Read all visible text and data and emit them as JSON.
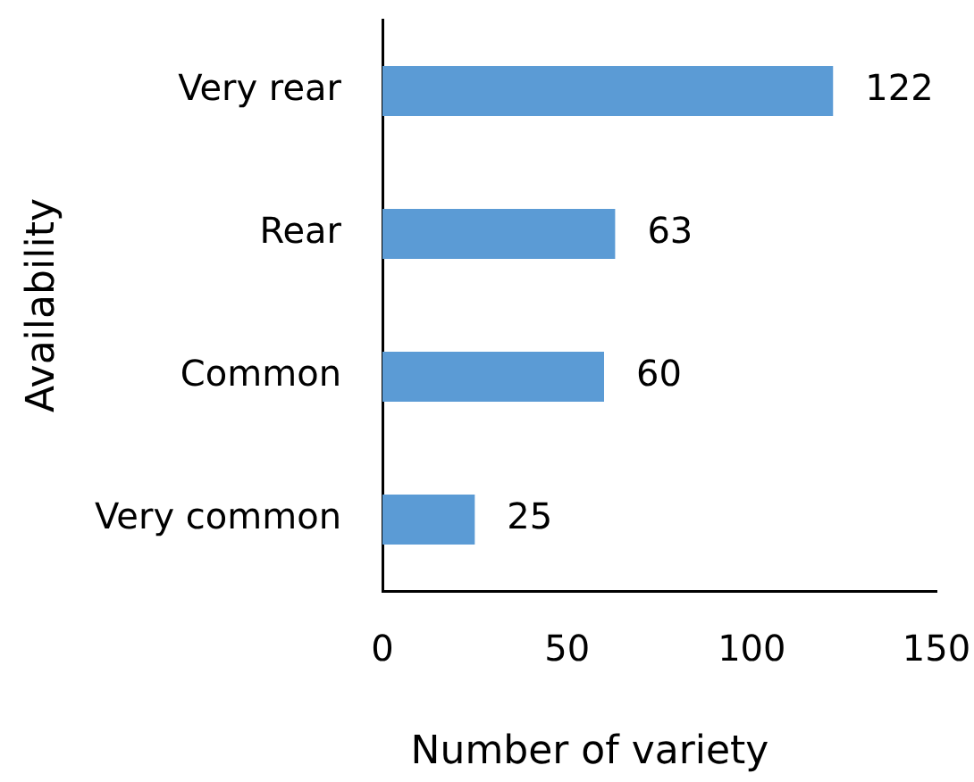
{
  "chart_data": {
    "type": "bar",
    "orientation": "horizontal",
    "xlabel": "Number of variety",
    "ylabel": "Availability",
    "categories": [
      "Very rear",
      "Rear",
      "Common",
      "Very common"
    ],
    "values": [
      122,
      63,
      60,
      25
    ],
    "color": "#5b9bd5",
    "xlim": [
      0,
      150
    ],
    "xticks": [
      0,
      50,
      100,
      150
    ],
    "data_labels": true
  }
}
